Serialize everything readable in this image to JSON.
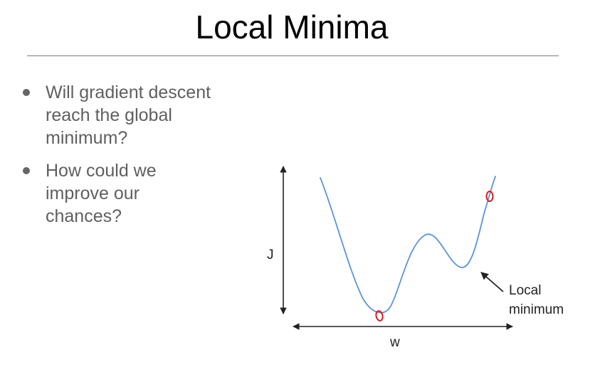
{
  "slide": {
    "title": "Local Minima",
    "bullets": [
      {
        "lines": [
          "Will gradient descent",
          "reach the global",
          "minimum?"
        ]
      },
      {
        "lines": [
          "How could we",
          "improve our",
          "chances?"
        ]
      }
    ]
  },
  "figure": {
    "y_axis_label": "J",
    "x_axis_label": "w",
    "annotation_lines": [
      "Local",
      "minimum"
    ],
    "colors": {
      "curve": "#5b95d8",
      "marker": "#d62020",
      "axes": "#222222"
    }
  }
}
